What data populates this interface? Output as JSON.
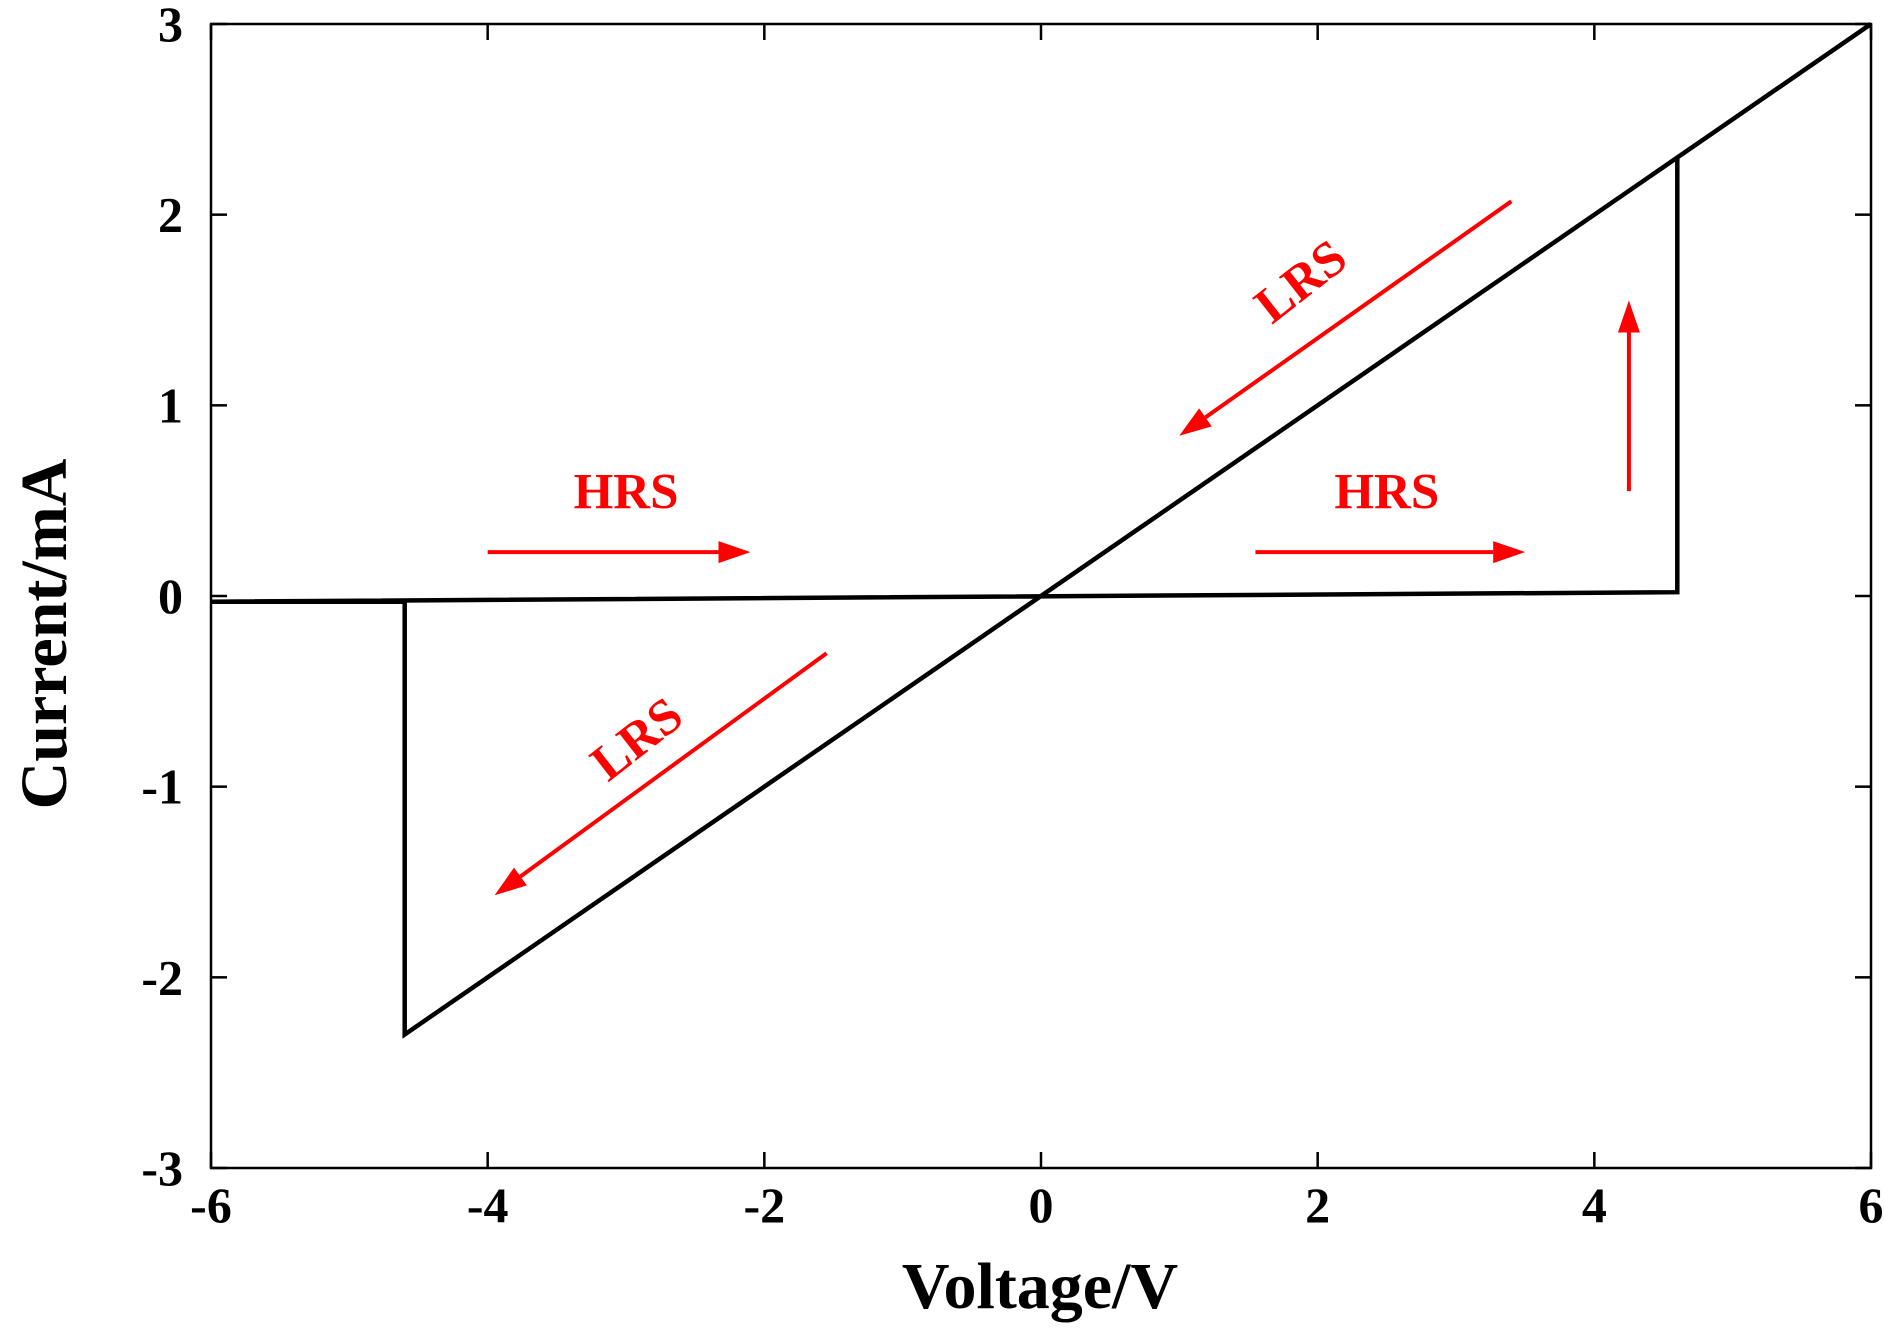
{
  "chart_data": {
    "type": "line",
    "xlabel": "Voltage/V",
    "ylabel": "Current/mA",
    "xlim": [
      -6,
      6
    ],
    "ylim": [
      -3,
      3
    ],
    "xticks": [
      -6,
      -4,
      -2,
      0,
      2,
      4,
      6
    ],
    "yticks": [
      -3,
      -2,
      -1,
      0,
      1,
      2,
      3
    ],
    "xtick_labels": [
      "-6",
      "-4",
      "-2",
      "0",
      "2",
      "4",
      "6"
    ],
    "ytick_labels": [
      "-3",
      "-2",
      "-1",
      "0",
      "1",
      "2",
      "3"
    ],
    "grid": false,
    "series": [
      {
        "line_color": "#000000",
        "x": [
          -6,
          4.6,
          4.6,
          6,
          0,
          -4.6,
          -4.6,
          -6
        ],
        "y": [
          -0.03,
          0.02,
          2.3,
          3.0,
          0,
          -2.3,
          -0.03,
          -0.03
        ]
      }
    ],
    "annotations": [
      {
        "text": "HRS",
        "x": -3.0,
        "y": 0.52,
        "rotate": 0,
        "color": "#ff0000"
      },
      {
        "text": "HRS",
        "x": 2.5,
        "y": 0.52,
        "rotate": 0,
        "color": "#ff0000"
      },
      {
        "text": "LRS",
        "x": 1.9,
        "y": 1.63,
        "rotate": -38,
        "color": "#ff0000"
      },
      {
        "text": "LRS",
        "x": -2.9,
        "y": -0.77,
        "rotate": -38,
        "color": "#ff0000"
      }
    ],
    "arrows": [
      {
        "from": [
          -4.0,
          0.23
        ],
        "to": [
          -2.1,
          0.23
        ],
        "color": "#ff0000"
      },
      {
        "from": [
          1.55,
          0.23
        ],
        "to": [
          3.5,
          0.23
        ],
        "color": "#ff0000"
      },
      {
        "from": [
          4.25,
          0.55
        ],
        "to": [
          4.25,
          1.55
        ],
        "color": "#ff0000"
      },
      {
        "from": [
          3.4,
          2.07
        ],
        "to": [
          1.0,
          0.84
        ],
        "color": "#ff0000"
      },
      {
        "from": [
          -1.55,
          -0.3
        ],
        "to": [
          -3.95,
          -1.57
        ],
        "color": "#ff0000"
      }
    ]
  }
}
